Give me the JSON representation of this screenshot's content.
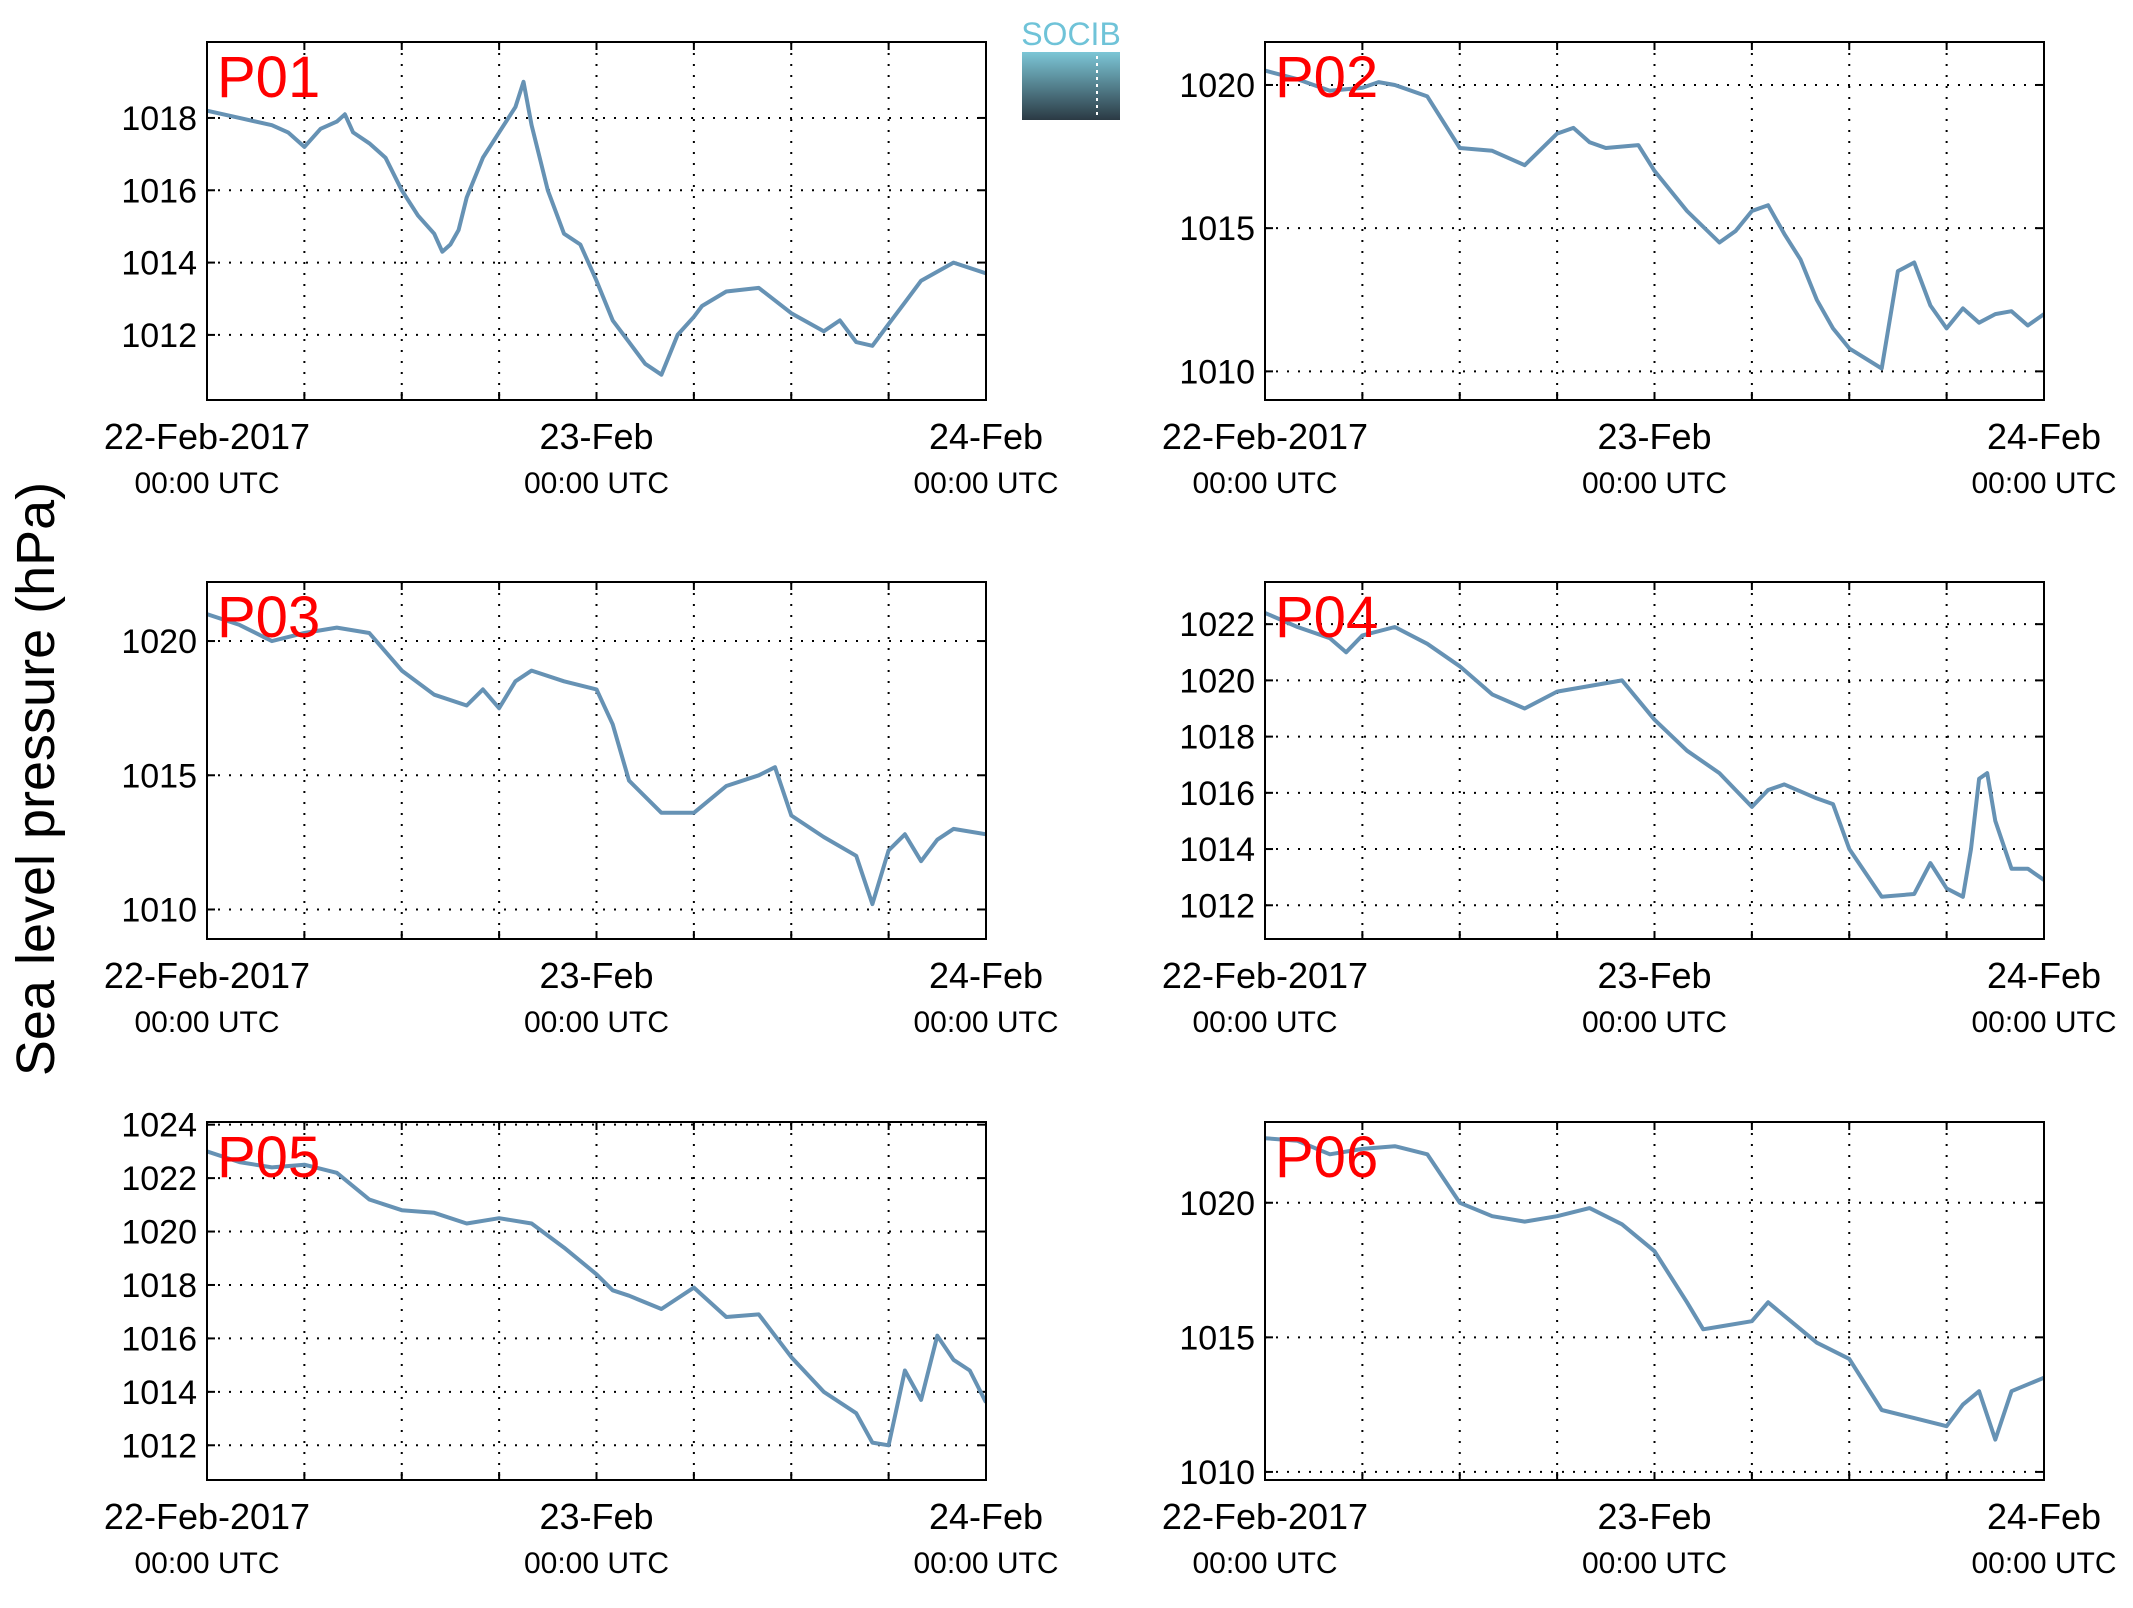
{
  "ylabel": "Sea level pressure (hPa)",
  "logo": {
    "text": "SOCIB",
    "colors": {
      "text": "#6fc3d8",
      "top": "#7cc6d6",
      "bottom": "#2b3a44"
    }
  },
  "series_color": "#6692b4",
  "label_color": "#ff0000",
  "chart_data": [
    {
      "type": "line",
      "title": "P01",
      "x_ticks": [
        {
          "date": "22-Feb-2017",
          "time": "00:00 UTC"
        },
        {
          "date": "23-Feb",
          "time": "00:00 UTC"
        },
        {
          "date": "24-Feb",
          "time": "00:00 UTC"
        }
      ],
      "xlim": [
        "2017-02-22T00:00",
        "2017-02-24T00:00"
      ],
      "ylim": [
        1010.2,
        1020.1
      ],
      "yticks": [
        1012,
        1014,
        1016,
        1018
      ],
      "grid": true,
      "series": [
        {
          "x": [
            "2017-02-22T00:00",
            "2017-02-22T02:00",
            "2017-02-22T04:00",
            "2017-02-22T05:00",
            "2017-02-22T06:00",
            "2017-02-22T07:00",
            "2017-02-22T08:00",
            "2017-02-22T08:30",
            "2017-02-22T09:00",
            "2017-02-22T10:00",
            "2017-02-22T11:00",
            "2017-02-22T12:00",
            "2017-02-22T13:00",
            "2017-02-22T14:00",
            "2017-02-22T14:30",
            "2017-02-22T15:00",
            "2017-02-22T15:30",
            "2017-02-22T16:00",
            "2017-02-22T17:00",
            "2017-02-22T18:00",
            "2017-02-22T19:00",
            "2017-02-22T19:30",
            "2017-02-22T20:00",
            "2017-02-22T20:30",
            "2017-02-22T21:00",
            "2017-02-22T22:00",
            "2017-02-22T23:00",
            "2017-02-23T00:00",
            "2017-02-23T01:00",
            "2017-02-23T02:00",
            "2017-02-23T03:00",
            "2017-02-23T04:00",
            "2017-02-23T05:00",
            "2017-02-23T06:00",
            "2017-02-23T06:30",
            "2017-02-23T08:00",
            "2017-02-23T10:00",
            "2017-02-23T12:00",
            "2017-02-23T14:00",
            "2017-02-23T15:00",
            "2017-02-23T16:00",
            "2017-02-23T17:00",
            "2017-02-23T18:00",
            "2017-02-23T19:00",
            "2017-02-23T20:00",
            "2017-02-23T22:00",
            "2017-02-24T00:00"
          ],
          "y": [
            1018.2,
            1018.0,
            1017.8,
            1017.6,
            1017.2,
            1017.7,
            1017.9,
            1018.1,
            1017.6,
            1017.3,
            1016.9,
            1016.0,
            1015.3,
            1014.8,
            1014.3,
            1014.5,
            1014.9,
            1015.8,
            1016.9,
            1017.6,
            1018.3,
            1019.0,
            1017.8,
            1016.9,
            1016.0,
            1014.8,
            1014.5,
            1013.5,
            1012.4,
            1011.8,
            1011.2,
            1010.9,
            1012.0,
            1012.5,
            1012.8,
            1013.2,
            1013.3,
            1012.6,
            1012.1,
            1012.4,
            1011.8,
            1011.7,
            1012.3,
            1012.9,
            1013.5,
            1014.0,
            1013.7
          ]
        }
      ]
    },
    {
      "type": "line",
      "title": "P02",
      "x_ticks": [
        {
          "date": "22-Feb-2017",
          "time": "00:00 UTC"
        },
        {
          "date": "23-Feb",
          "time": "00:00 UTC"
        },
        {
          "date": "24-Feb",
          "time": "00:00 UTC"
        }
      ],
      "xlim": [
        "2017-02-22T00:00",
        "2017-02-24T00:00"
      ],
      "ylim": [
        1009.0,
        1021.5
      ],
      "yticks": [
        1010,
        1015,
        1020
      ],
      "grid": true,
      "series": [
        {
          "x": [
            "2017-02-22T00:00",
            "2017-02-22T02:00",
            "2017-02-22T04:00",
            "2017-02-22T06:00",
            "2017-02-22T07:00",
            "2017-02-22T08:00",
            "2017-02-22T10:00",
            "2017-02-22T12:00",
            "2017-02-22T14:00",
            "2017-02-22T16:00",
            "2017-02-22T18:00",
            "2017-02-22T19:00",
            "2017-02-22T20:00",
            "2017-02-22T21:00",
            "2017-02-22T23:00",
            "2017-02-23T00:00",
            "2017-02-23T02:00",
            "2017-02-23T04:00",
            "2017-02-23T05:00",
            "2017-02-23T06:00",
            "2017-02-23T07:00",
            "2017-02-23T08:00",
            "2017-02-23T09:00",
            "2017-02-23T10:00",
            "2017-02-23T11:00",
            "2017-02-23T12:00",
            "2017-02-23T14:00",
            "2017-02-23T15:00",
            "2017-02-23T16:00",
            "2017-02-23T17:00",
            "2017-02-23T18:00",
            "2017-02-23T19:00",
            "2017-02-23T20:00",
            "2017-02-23T21:00",
            "2017-02-23T22:00",
            "2017-02-23T23:00",
            "2017-02-24T00:00"
          ],
          "y": [
            1020.5,
            1020.2,
            1019.8,
            1019.9,
            1020.1,
            1020.0,
            1019.6,
            1017.8,
            1017.7,
            1017.2,
            1018.3,
            1018.5,
            1018.0,
            1017.8,
            1017.9,
            1017.0,
            1015.6,
            1014.5,
            1014.9,
            1015.6,
            1015.8,
            1014.8,
            1013.9,
            1012.5,
            1011.5,
            1010.8,
            1010.1,
            1013.5,
            1013.8,
            1012.3,
            1011.5,
            1012.2,
            1011.7,
            1012.0,
            1012.1,
            1011.6,
            1012.0
          ]
        }
      ]
    },
    {
      "type": "line",
      "title": "P03",
      "x_ticks": [
        {
          "date": "22-Feb-2017",
          "time": "00:00 UTC"
        },
        {
          "date": "23-Feb",
          "time": "00:00 UTC"
        },
        {
          "date": "24-Feb",
          "time": "00:00 UTC"
        }
      ],
      "xlim": [
        "2017-02-22T00:00",
        "2017-02-24T00:00"
      ],
      "ylim": [
        1008.9,
        1022.2
      ],
      "yticks": [
        1010,
        1015,
        1020
      ],
      "grid": true,
      "series": [
        {
          "x": [
            "2017-02-22T00:00",
            "2017-02-22T02:00",
            "2017-02-22T04:00",
            "2017-02-22T06:00",
            "2017-02-22T08:00",
            "2017-02-22T10:00",
            "2017-02-22T12:00",
            "2017-02-22T14:00",
            "2017-02-22T16:00",
            "2017-02-22T17:00",
            "2017-02-22T18:00",
            "2017-02-22T19:00",
            "2017-02-22T20:00",
            "2017-02-22T22:00",
            "2017-02-23T00:00",
            "2017-02-23T01:00",
            "2017-02-23T02:00",
            "2017-02-23T04:00",
            "2017-02-23T06:00",
            "2017-02-23T08:00",
            "2017-02-23T10:00",
            "2017-02-23T11:00",
            "2017-02-23T12:00",
            "2017-02-23T14:00",
            "2017-02-23T16:00",
            "2017-02-23T17:00",
            "2017-02-23T18:00",
            "2017-02-23T19:00",
            "2017-02-23T20:00",
            "2017-02-23T21:00",
            "2017-02-23T22:00",
            "2017-02-24T00:00"
          ],
          "y": [
            1021.0,
            1020.6,
            1020.0,
            1020.3,
            1020.5,
            1020.3,
            1018.9,
            1018.0,
            1017.6,
            1018.2,
            1017.5,
            1018.5,
            1018.9,
            1018.5,
            1018.2,
            1016.9,
            1014.8,
            1013.6,
            1013.6,
            1014.6,
            1015.0,
            1015.3,
            1013.5,
            1012.7,
            1012.0,
            1010.2,
            1012.2,
            1012.8,
            1011.8,
            1012.6,
            1013.0,
            1012.8
          ]
        }
      ]
    },
    {
      "type": "line",
      "title": "P04",
      "x_ticks": [
        {
          "date": "22-Feb-2017",
          "time": "00:00 UTC"
        },
        {
          "date": "23-Feb",
          "time": "00:00 UTC"
        },
        {
          "date": "24-Feb",
          "time": "00:00 UTC"
        }
      ],
      "xlim": [
        "2017-02-22T00:00",
        "2017-02-24T00:00"
      ],
      "ylim": [
        1010.8,
        1023.5
      ],
      "yticks": [
        1012,
        1014,
        1016,
        1018,
        1020,
        1022
      ],
      "grid": true,
      "series": [
        {
          "x": [
            "2017-02-22T00:00",
            "2017-02-22T02:00",
            "2017-02-22T04:00",
            "2017-02-22T05:00",
            "2017-02-22T06:00",
            "2017-02-22T08:00",
            "2017-02-22T10:00",
            "2017-02-22T12:00",
            "2017-02-22T14:00",
            "2017-02-22T16:00",
            "2017-02-22T18:00",
            "2017-02-22T20:00",
            "2017-02-22T22:00",
            "2017-02-23T00:00",
            "2017-02-23T02:00",
            "2017-02-23T04:00",
            "2017-02-23T06:00",
            "2017-02-23T07:00",
            "2017-02-23T08:00",
            "2017-02-23T10:00",
            "2017-02-23T11:00",
            "2017-02-23T12:00",
            "2017-02-23T14:00",
            "2017-02-23T16:00",
            "2017-02-23T17:00",
            "2017-02-23T18:00",
            "2017-02-23T19:00",
            "2017-02-23T19:30",
            "2017-02-23T20:00",
            "2017-02-23T20:30",
            "2017-02-23T21:00",
            "2017-02-23T22:00",
            "2017-02-23T23:00",
            "2017-02-24T00:00"
          ],
          "y": [
            1022.4,
            1021.9,
            1021.5,
            1021.0,
            1021.6,
            1021.9,
            1021.3,
            1020.5,
            1019.5,
            1019.0,
            1019.6,
            1019.8,
            1020.0,
            1018.6,
            1017.5,
            1016.7,
            1015.5,
            1016.1,
            1016.3,
            1015.8,
            1015.6,
            1014.0,
            1012.3,
            1012.4,
            1013.5,
            1012.6,
            1012.3,
            1014.0,
            1016.5,
            1016.7,
            1015.0,
            1013.3,
            1013.3,
            1012.9
          ]
        }
      ]
    },
    {
      "type": "line",
      "title": "P05",
      "x_ticks": [
        {
          "date": "22-Feb-2017",
          "time": "00:00 UTC"
        },
        {
          "date": "23-Feb",
          "time": "00:00 UTC"
        },
        {
          "date": "24-Feb",
          "time": "00:00 UTC"
        }
      ],
      "xlim": [
        "2017-02-22T00:00",
        "2017-02-24T00:00"
      ],
      "ylim": [
        1010.7,
        1024.1
      ],
      "yticks": [
        1012,
        1014,
        1016,
        1018,
        1020,
        1022,
        1024
      ],
      "grid": true,
      "series": [
        {
          "x": [
            "2017-02-22T00:00",
            "2017-02-22T02:00",
            "2017-02-22T04:00",
            "2017-02-22T06:00",
            "2017-02-22T08:00",
            "2017-02-22T10:00",
            "2017-02-22T12:00",
            "2017-02-22T14:00",
            "2017-02-22T16:00",
            "2017-02-22T18:00",
            "2017-02-22T20:00",
            "2017-02-22T22:00",
            "2017-02-23T00:00",
            "2017-02-23T01:00",
            "2017-02-23T02:00",
            "2017-02-23T04:00",
            "2017-02-23T06:00",
            "2017-02-23T08:00",
            "2017-02-23T10:00",
            "2017-02-23T12:00",
            "2017-02-23T14:00",
            "2017-02-23T16:00",
            "2017-02-23T17:00",
            "2017-02-23T18:00",
            "2017-02-23T19:00",
            "2017-02-23T20:00",
            "2017-02-23T21:00",
            "2017-02-23T22:00",
            "2017-02-23T23:00",
            "2017-02-24T00:00"
          ],
          "y": [
            1023.0,
            1022.6,
            1022.4,
            1022.5,
            1022.2,
            1021.2,
            1020.8,
            1020.7,
            1020.3,
            1020.5,
            1020.3,
            1019.4,
            1018.4,
            1017.8,
            1017.6,
            1017.1,
            1017.9,
            1016.8,
            1016.9,
            1015.3,
            1014.0,
            1013.2,
            1012.1,
            1012.0,
            1014.8,
            1013.7,
            1016.1,
            1015.2,
            1014.8,
            1013.6
          ]
        }
      ]
    },
    {
      "type": "line",
      "title": "P06",
      "x_ticks": [
        {
          "date": "22-Feb-2017",
          "time": "00:00 UTC"
        },
        {
          "date": "23-Feb",
          "time": "00:00 UTC"
        },
        {
          "date": "24-Feb",
          "time": "00:00 UTC"
        }
      ],
      "xlim": [
        "2017-02-22T00:00",
        "2017-02-24T00:00"
      ],
      "ylim": [
        1009.7,
        1023.0
      ],
      "yticks": [
        1010,
        1015,
        1020
      ],
      "grid": true,
      "series": [
        {
          "x": [
            "2017-02-22T00:00",
            "2017-02-22T02:00",
            "2017-02-22T04:00",
            "2017-02-22T06:00",
            "2017-02-22T08:00",
            "2017-02-22T10:00",
            "2017-02-22T12:00",
            "2017-02-22T14:00",
            "2017-02-22T16:00",
            "2017-02-22T18:00",
            "2017-02-22T20:00",
            "2017-02-22T22:00",
            "2017-02-23T00:00",
            "2017-02-23T02:00",
            "2017-02-23T03:00",
            "2017-02-23T04:00",
            "2017-02-23T06:00",
            "2017-02-23T07:00",
            "2017-02-23T08:00",
            "2017-02-23T10:00",
            "2017-02-23T12:00",
            "2017-02-23T14:00",
            "2017-02-23T16:00",
            "2017-02-23T18:00",
            "2017-02-23T19:00",
            "2017-02-23T20:00",
            "2017-02-23T21:00",
            "2017-02-23T22:00",
            "2017-02-24T00:00"
          ],
          "y": [
            1022.4,
            1022.3,
            1021.8,
            1022.0,
            1022.1,
            1021.8,
            1020.0,
            1019.5,
            1019.3,
            1019.5,
            1019.8,
            1019.2,
            1018.2,
            1016.3,
            1015.3,
            1015.4,
            1015.6,
            1016.3,
            1015.8,
            1014.8,
            1014.2,
            1012.3,
            1012.0,
            1011.7,
            1012.5,
            1013.0,
            1011.2,
            1013.0,
            1013.5
          ]
        }
      ]
    }
  ]
}
